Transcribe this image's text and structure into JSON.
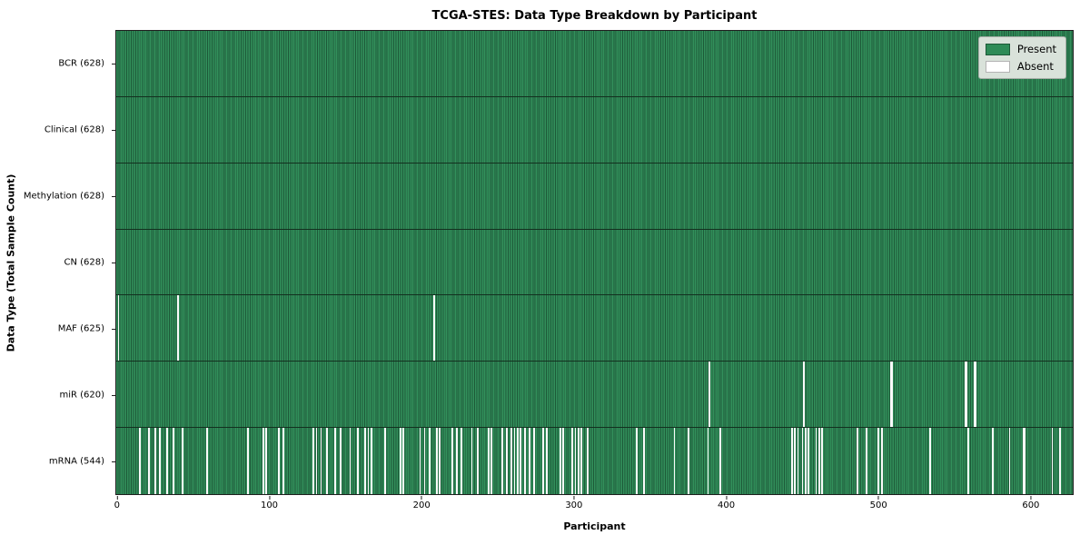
{
  "chart_data": {
    "type": "heatmap",
    "title": "TCGA-STES: Data Type Breakdown by Participant",
    "xlabel": "Participant",
    "ylabel": "Data Type (Total Sample Count)",
    "n_participants": 628,
    "xlim": [
      -0.5,
      627.5
    ],
    "x_tick_values": [
      0,
      100,
      200,
      300,
      400,
      500,
      600
    ],
    "grid": false,
    "legend_position": "upper right",
    "colors": {
      "present": "#2e8b57",
      "bar_edge": "#1d5938",
      "absent": "#fafafa",
      "row_divider": "#13301f",
      "legend_bg": "#d9e2da"
    },
    "legend": {
      "entries": [
        {
          "name": "present",
          "label": "Present",
          "color": "#2e8b57",
          "edge": "#1d5938"
        },
        {
          "name": "absent",
          "label": "Absent",
          "color": "#ffffff",
          "edge": "#b3b3b3"
        }
      ]
    },
    "rows": [
      {
        "name": "BCR",
        "label": "BCR (628)",
        "present_count": 628,
        "absent": []
      },
      {
        "name": "Clinical",
        "label": "Clinical (628)",
        "present_count": 628,
        "absent": []
      },
      {
        "name": "Methylation",
        "label": "Methylation (628)",
        "present_count": 628,
        "absent": []
      },
      {
        "name": "CN",
        "label": "CN (628)",
        "present_count": 628,
        "absent": []
      },
      {
        "name": "MAF",
        "label": "MAF (625)",
        "present_count": 625,
        "absent": [
          1,
          40,
          208
        ]
      },
      {
        "name": "miR",
        "label": "miR (620)",
        "present_count": 620,
        "absent": [
          389,
          451,
          508,
          509,
          557,
          558,
          563,
          564
        ]
      },
      {
        "name": "mRNA",
        "label": "mRNA (544)",
        "present_count": 544,
        "absent": [
          15,
          21,
          25,
          28,
          33,
          37,
          43,
          59,
          86,
          96,
          98,
          106,
          109,
          129,
          131,
          134,
          138,
          143,
          147,
          153,
          158,
          163,
          165,
          167,
          176,
          186,
          188,
          199,
          202,
          205,
          210,
          212,
          220,
          223,
          226,
          233,
          237,
          244,
          246,
          253,
          256,
          259,
          261,
          263,
          265,
          268,
          271,
          274,
          280,
          282,
          291,
          293,
          299,
          301,
          303,
          305,
          309,
          341,
          346,
          366,
          375,
          388,
          396,
          443,
          445,
          447,
          450,
          452,
          454,
          459,
          461,
          463,
          486,
          492,
          500,
          502,
          534,
          559,
          575,
          586,
          595,
          596,
          614,
          619
        ]
      }
    ]
  }
}
